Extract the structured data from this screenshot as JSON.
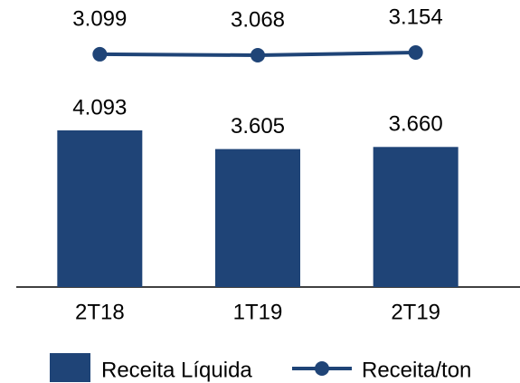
{
  "chart_data": {
    "type": "bar_line",
    "categories": [
      "2T18",
      "1T19",
      "2T19"
    ],
    "series": [
      {
        "name": "Receita Líquida",
        "type": "bar",
        "color": "#1f4477",
        "values": [
          4093,
          3605,
          3660
        ],
        "value_labels": [
          "4.093",
          "3.605",
          "3.660"
        ]
      },
      {
        "name": "Receita/ton",
        "type": "line",
        "axis": "y2",
        "color": "#1f4477",
        "values": [
          3099,
          3068,
          3154
        ],
        "value_labels": [
          "3.099",
          "3.068",
          "3.154"
        ]
      }
    ],
    "ylim": [
      0,
      7500
    ],
    "y2lim": [
      -4200,
      4800
    ],
    "legend": "bottom"
  }
}
